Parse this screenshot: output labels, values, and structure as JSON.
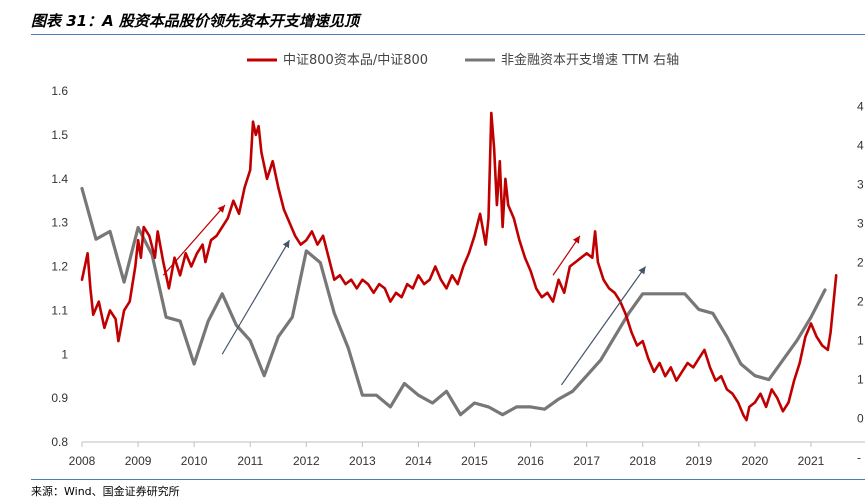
{
  "title": "图表 31：A 股资本品股价领先资本开支增速见顶",
  "source": "来源：Wind、国金证券研究所",
  "chart_data": {
    "type": "line",
    "title": "图表 31：A 股资本品股价领先资本开支增速见顶",
    "x_ticks": [
      "2008",
      "2009",
      "2010",
      "2011",
      "2012",
      "2013",
      "2014",
      "2015",
      "2016",
      "2017",
      "2018",
      "2019",
      "2020",
      "2021"
    ],
    "y_left": {
      "ticks": [
        "0.8",
        "0.9",
        "1",
        "1.1",
        "1.2",
        "1.3",
        "1.4",
        "1.5",
        "1.6"
      ],
      "lim": [
        0.8,
        1.6
      ]
    },
    "y_right": {
      "ticks": [
        "-",
        "0",
        "1",
        "1",
        "2",
        "2",
        "3",
        "3",
        "4",
        "4"
      ],
      "lim": [
        -5,
        40
      ]
    },
    "legend_position": "top-center",
    "series": [
      {
        "name": "中证800资本品/中证800",
        "axis": "left",
        "color": "#c00000",
        "points": [
          [
            2008.0,
            1.17
          ],
          [
            2008.05,
            1.2
          ],
          [
            2008.1,
            1.23
          ],
          [
            2008.15,
            1.15
          ],
          [
            2008.2,
            1.09
          ],
          [
            2008.3,
            1.12
          ],
          [
            2008.4,
            1.06
          ],
          [
            2008.5,
            1.1
          ],
          [
            2008.6,
            1.08
          ],
          [
            2008.65,
            1.03
          ],
          [
            2008.75,
            1.1
          ],
          [
            2008.85,
            1.12
          ],
          [
            2008.95,
            1.2
          ],
          [
            2009.0,
            1.26
          ],
          [
            2009.05,
            1.22
          ],
          [
            2009.1,
            1.29
          ],
          [
            2009.2,
            1.27
          ],
          [
            2009.3,
            1.22
          ],
          [
            2009.35,
            1.28
          ],
          [
            2009.45,
            1.21
          ],
          [
            2009.55,
            1.15
          ],
          [
            2009.65,
            1.22
          ],
          [
            2009.75,
            1.18
          ],
          [
            2009.85,
            1.23
          ],
          [
            2009.95,
            1.2
          ],
          [
            2010.05,
            1.23
          ],
          [
            2010.15,
            1.25
          ],
          [
            2010.2,
            1.21
          ],
          [
            2010.3,
            1.26
          ],
          [
            2010.4,
            1.27
          ],
          [
            2010.5,
            1.29
          ],
          [
            2010.6,
            1.31
          ],
          [
            2010.7,
            1.35
          ],
          [
            2010.8,
            1.32
          ],
          [
            2010.9,
            1.38
          ],
          [
            2011.0,
            1.42
          ],
          [
            2011.05,
            1.53
          ],
          [
            2011.1,
            1.5
          ],
          [
            2011.15,
            1.52
          ],
          [
            2011.2,
            1.46
          ],
          [
            2011.3,
            1.4
          ],
          [
            2011.4,
            1.44
          ],
          [
            2011.5,
            1.38
          ],
          [
            2011.6,
            1.33
          ],
          [
            2011.7,
            1.3
          ],
          [
            2011.8,
            1.27
          ],
          [
            2011.9,
            1.25
          ],
          [
            2012.0,
            1.26
          ],
          [
            2012.1,
            1.28
          ],
          [
            2012.2,
            1.25
          ],
          [
            2012.3,
            1.27
          ],
          [
            2012.4,
            1.22
          ],
          [
            2012.5,
            1.17
          ],
          [
            2012.6,
            1.18
          ],
          [
            2012.7,
            1.16
          ],
          [
            2012.8,
            1.17
          ],
          [
            2012.9,
            1.15
          ],
          [
            2013.0,
            1.17
          ],
          [
            2013.1,
            1.16
          ],
          [
            2013.2,
            1.14
          ],
          [
            2013.3,
            1.16
          ],
          [
            2013.4,
            1.15
          ],
          [
            2013.5,
            1.12
          ],
          [
            2013.6,
            1.14
          ],
          [
            2013.7,
            1.13
          ],
          [
            2013.8,
            1.16
          ],
          [
            2013.9,
            1.15
          ],
          [
            2014.0,
            1.18
          ],
          [
            2014.1,
            1.16
          ],
          [
            2014.2,
            1.17
          ],
          [
            2014.3,
            1.2
          ],
          [
            2014.4,
            1.17
          ],
          [
            2014.5,
            1.15
          ],
          [
            2014.6,
            1.18
          ],
          [
            2014.7,
            1.16
          ],
          [
            2014.8,
            1.2
          ],
          [
            2014.9,
            1.23
          ],
          [
            2015.0,
            1.27
          ],
          [
            2015.1,
            1.32
          ],
          [
            2015.2,
            1.25
          ],
          [
            2015.25,
            1.31
          ],
          [
            2015.3,
            1.55
          ],
          [
            2015.35,
            1.47
          ],
          [
            2015.4,
            1.34
          ],
          [
            2015.45,
            1.44
          ],
          [
            2015.5,
            1.29
          ],
          [
            2015.55,
            1.4
          ],
          [
            2015.6,
            1.34
          ],
          [
            2015.7,
            1.31
          ],
          [
            2015.8,
            1.26
          ],
          [
            2015.9,
            1.22
          ],
          [
            2016.0,
            1.19
          ],
          [
            2016.1,
            1.15
          ],
          [
            2016.2,
            1.13
          ],
          [
            2016.3,
            1.14
          ],
          [
            2016.4,
            1.12
          ],
          [
            2016.5,
            1.17
          ],
          [
            2016.6,
            1.14
          ],
          [
            2016.7,
            1.2
          ],
          [
            2016.8,
            1.21
          ],
          [
            2016.9,
            1.22
          ],
          [
            2017.0,
            1.23
          ],
          [
            2017.1,
            1.22
          ],
          [
            2017.15,
            1.28
          ],
          [
            2017.2,
            1.21
          ],
          [
            2017.3,
            1.17
          ],
          [
            2017.4,
            1.15
          ],
          [
            2017.5,
            1.14
          ],
          [
            2017.6,
            1.12
          ],
          [
            2017.7,
            1.09
          ],
          [
            2017.8,
            1.05
          ],
          [
            2017.9,
            1.02
          ],
          [
            2018.0,
            1.03
          ],
          [
            2018.1,
            0.99
          ],
          [
            2018.2,
            0.96
          ],
          [
            2018.3,
            0.98
          ],
          [
            2018.4,
            0.95
          ],
          [
            2018.5,
            0.97
          ],
          [
            2018.6,
            0.94
          ],
          [
            2018.7,
            0.96
          ],
          [
            2018.8,
            0.98
          ],
          [
            2018.9,
            0.97
          ],
          [
            2019.0,
            0.99
          ],
          [
            2019.1,
            1.01
          ],
          [
            2019.2,
            0.97
          ],
          [
            2019.3,
            0.94
          ],
          [
            2019.4,
            0.95
          ],
          [
            2019.5,
            0.92
          ],
          [
            2019.6,
            0.91
          ],
          [
            2019.7,
            0.89
          ],
          [
            2019.8,
            0.86
          ],
          [
            2019.85,
            0.85
          ],
          [
            2019.9,
            0.88
          ],
          [
            2020.0,
            0.89
          ],
          [
            2020.1,
            0.91
          ],
          [
            2020.2,
            0.88
          ],
          [
            2020.3,
            0.92
          ],
          [
            2020.4,
            0.9
          ],
          [
            2020.5,
            0.87
          ],
          [
            2020.6,
            0.89
          ],
          [
            2020.7,
            0.94
          ],
          [
            2020.8,
            0.98
          ],
          [
            2020.9,
            1.04
          ],
          [
            2021.0,
            1.07
          ],
          [
            2021.1,
            1.04
          ],
          [
            2021.2,
            1.02
          ],
          [
            2021.3,
            1.01
          ],
          [
            2021.35,
            1.05
          ],
          [
            2021.45,
            1.18
          ]
        ]
      },
      {
        "name": "非金融资本开支增速 TTM 右轴",
        "axis": "right",
        "color": "#777777",
        "points": [
          [
            2008.0,
            27.5
          ],
          [
            2008.25,
            21.0
          ],
          [
            2008.5,
            22.0
          ],
          [
            2008.75,
            15.5
          ],
          [
            2009.0,
            22.5
          ],
          [
            2009.25,
            19.0
          ],
          [
            2009.5,
            11.0
          ],
          [
            2009.75,
            10.5
          ],
          [
            2010.0,
            5.0
          ],
          [
            2010.25,
            10.5
          ],
          [
            2010.5,
            14.0
          ],
          [
            2010.75,
            10.0
          ],
          [
            2011.0,
            8.0
          ],
          [
            2011.25,
            3.5
          ],
          [
            2011.5,
            8.5
          ],
          [
            2011.75,
            11.0
          ],
          [
            2012.0,
            19.5
          ],
          [
            2012.25,
            18.0
          ],
          [
            2012.5,
            11.5
          ],
          [
            2012.75,
            7.0
          ],
          [
            2013.0,
            1.0
          ],
          [
            2013.25,
            1.0
          ],
          [
            2013.5,
            -0.5
          ],
          [
            2013.75,
            2.5
          ],
          [
            2014.0,
            1.0
          ],
          [
            2014.25,
            0.0
          ],
          [
            2014.5,
            1.5
          ],
          [
            2014.75,
            -1.5
          ],
          [
            2015.0,
            0.0
          ],
          [
            2015.25,
            -0.5
          ],
          [
            2015.5,
            -1.5
          ],
          [
            2015.75,
            -0.5
          ],
          [
            2016.0,
            -0.5
          ],
          [
            2016.25,
            -0.8
          ],
          [
            2016.5,
            0.5
          ],
          [
            2016.75,
            1.5
          ],
          [
            2017.0,
            3.5
          ],
          [
            2017.25,
            5.5
          ],
          [
            2017.5,
            8.5
          ],
          [
            2017.75,
            11.5
          ],
          [
            2018.0,
            14.0
          ],
          [
            2018.25,
            14.0
          ],
          [
            2018.5,
            14.0
          ],
          [
            2018.75,
            14.0
          ],
          [
            2019.0,
            12.0
          ],
          [
            2019.25,
            11.5
          ],
          [
            2019.5,
            8.5
          ],
          [
            2019.75,
            5.0
          ],
          [
            2020.0,
            3.5
          ],
          [
            2020.25,
            3.0
          ],
          [
            2020.5,
            5.5
          ],
          [
            2020.75,
            8.0
          ],
          [
            2021.0,
            11.0
          ],
          [
            2021.25,
            14.5
          ]
        ]
      }
    ]
  },
  "annotations": {
    "arrow_color_red": "#c00000",
    "arrow_color_blue": "#44546a",
    "red_arrows": [
      {
        "from": [
          2009.45,
          1.18
        ],
        "to": [
          2010.55,
          1.34
        ]
      },
      {
        "from": [
          2016.4,
          1.18
        ],
        "to": [
          2016.88,
          1.27
        ]
      }
    ],
    "blue_arrows": [
      {
        "from": [
          2010.5,
          1.0
        ],
        "to": [
          2011.7,
          1.26
        ]
      },
      {
        "from": [
          2016.55,
          0.93
        ],
        "to": [
          2018.05,
          1.2
        ]
      }
    ]
  }
}
